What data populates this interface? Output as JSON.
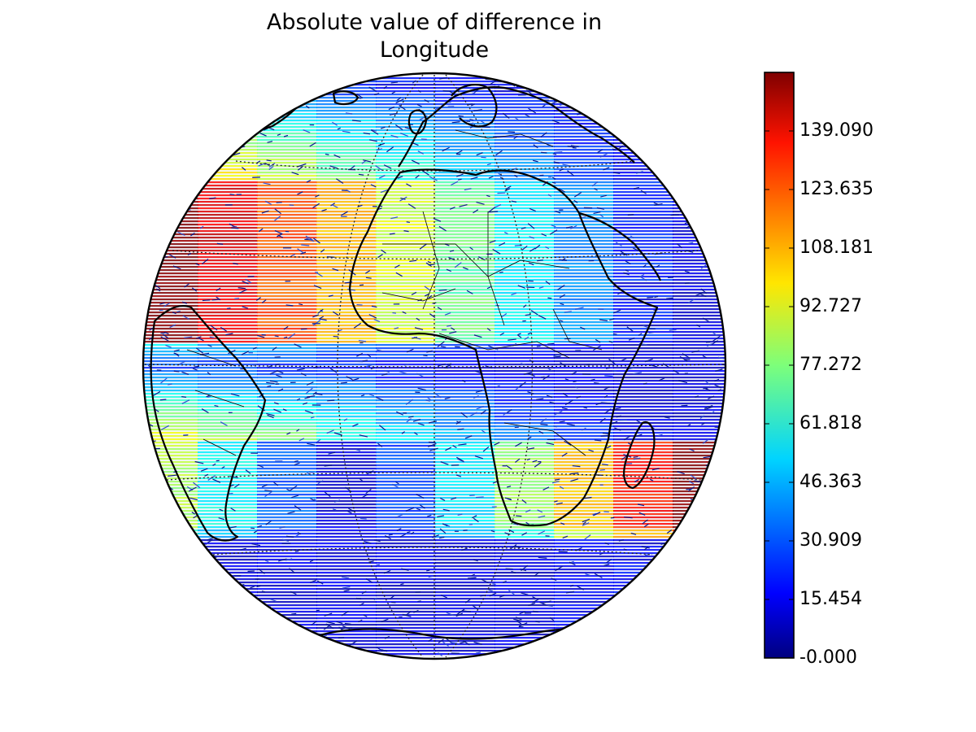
{
  "title": {
    "line1": "Absolute value of difference in",
    "line2": "Longitude"
  },
  "map": {
    "projection": "orthographic",
    "field": "absolute value of difference in longitude",
    "colormap": "jet",
    "grid": "dotted meridians and parallels",
    "coastlines": true,
    "country_borders": true
  },
  "colorbar": {
    "colormap": "jet",
    "range": [
      0,
      154.545
    ],
    "ticks": [
      {
        "value": 0,
        "label": "-0.000"
      },
      {
        "value": 15.454,
        "label": "15.454"
      },
      {
        "value": 30.909,
        "label": "30.909"
      },
      {
        "value": 46.363,
        "label": "46.363"
      },
      {
        "value": 61.818,
        "label": "61.818"
      },
      {
        "value": 77.272,
        "label": "77.272"
      },
      {
        "value": 92.727,
        "label": "92.727"
      },
      {
        "value": 108.181,
        "label": "108.181"
      },
      {
        "value": 123.635,
        "label": "123.635"
      },
      {
        "value": 139.09,
        "label": "139.090"
      }
    ]
  }
}
